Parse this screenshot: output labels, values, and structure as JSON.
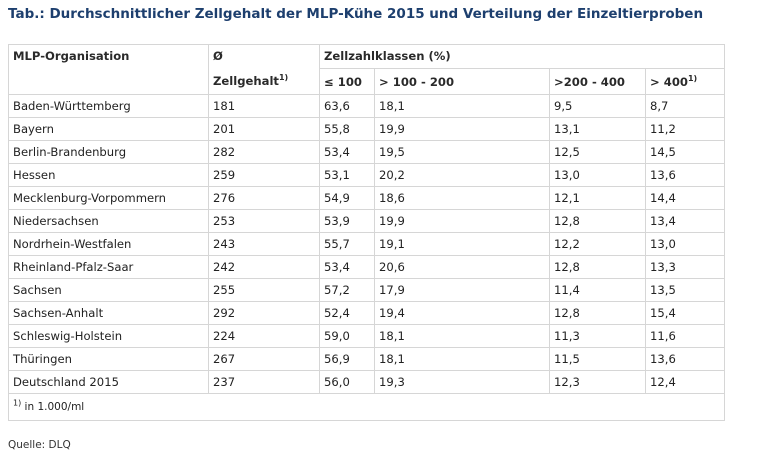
{
  "title": "Tab.: Durchschnittlicher Zellgehalt der MLP-Kühe 2015 und Verteilung der Einzeltierproben",
  "table": {
    "header_row1": {
      "col1": "MLP-Organisation",
      "col2": "Ø",
      "col3": "Zellzahlklassen (%)"
    },
    "header_row2": {
      "col2": "Zellgehalt",
      "col2_sup": "1)",
      "col3": "≤ 100",
      "col4": "> 100 - 200",
      "col5": ">200 - 400",
      "col6": "> 400",
      "col6_sup": "1)"
    },
    "rows": [
      [
        "Baden-Württemberg",
        "181",
        "63,6",
        "18,1",
        "9,5",
        "8,7"
      ],
      [
        "Bayern",
        "201",
        "55,8",
        "19,9",
        "13,1",
        "11,2"
      ],
      [
        "Berlin-Brandenburg",
        "282",
        "53,4",
        "19,5",
        "12,5",
        "14,5"
      ],
      [
        "Hessen",
        "259",
        "53,1",
        "20,2",
        "13,0",
        "13,6"
      ],
      [
        "Mecklenburg-Vorpommern",
        "276",
        "54,9",
        "18,6",
        "12,1",
        "14,4"
      ],
      [
        "Niedersachsen",
        "253",
        "53,9",
        "19,9",
        "12,8",
        "13,4"
      ],
      [
        "Nordrhein-Westfalen",
        "243",
        "55,7",
        "19,1",
        "12,2",
        "13,0"
      ],
      [
        "Rheinland-Pfalz-Saar",
        "242",
        "53,4",
        "20,6",
        "12,8",
        "13,3"
      ],
      [
        "Sachsen",
        "255",
        "57,2",
        "17,9",
        "11,4",
        "13,5"
      ],
      [
        "Sachsen-Anhalt",
        "292",
        "52,4",
        "19,4",
        "12,8",
        "15,4"
      ],
      [
        "Schleswig-Holstein",
        "224",
        "59,0",
        "18,1",
        "11,3",
        "11,6"
      ],
      [
        "Thüringen",
        "267",
        "56,9",
        "18,1",
        "11,5",
        "13,6"
      ],
      [
        "Deutschland 2015",
        "237",
        "56,0",
        "19,3",
        "12,3",
        "12,4"
      ]
    ],
    "footnote_sup": "1)",
    "footnote_text": " in 1.000/ml"
  },
  "source": "Quelle: DLQ",
  "colors": {
    "title": "#1d3f6e",
    "border": "#d6d6d6"
  }
}
